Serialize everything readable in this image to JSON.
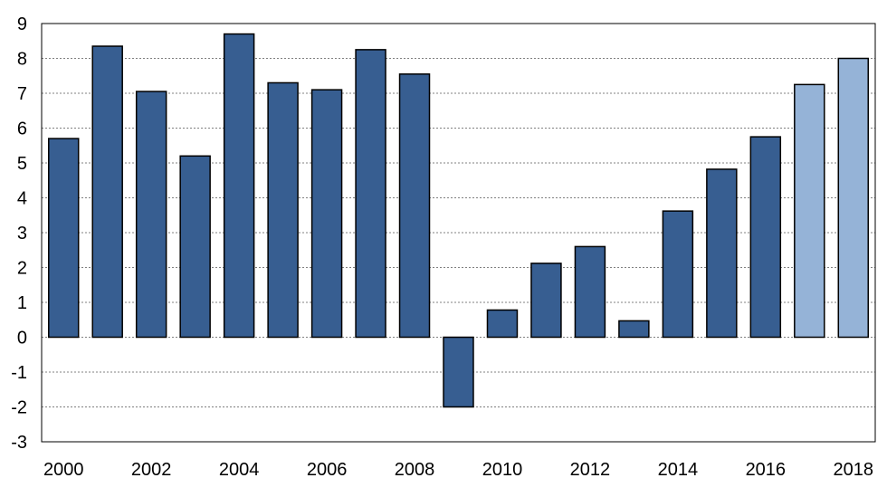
{
  "chart_data": {
    "type": "bar",
    "title": "",
    "xlabel": "",
    "ylabel": "",
    "ylim": [
      -3,
      9
    ],
    "yticks": [
      -3,
      -2,
      -1,
      0,
      1,
      2,
      3,
      4,
      5,
      6,
      7,
      8,
      9
    ],
    "grid": "horizontal dashed",
    "categories": [
      "2000",
      "2001",
      "2002",
      "2003",
      "2004",
      "2005",
      "2006",
      "2007",
      "2008",
      "2009",
      "2010",
      "2011",
      "2012",
      "2013",
      "2014",
      "2015",
      "2016",
      "2017",
      "2018"
    ],
    "xtick_labels": [
      "2000",
      "2002",
      "2004",
      "2006",
      "2008",
      "2010",
      "2012",
      "2014",
      "2016",
      "2018"
    ],
    "values": [
      5.7,
      8.35,
      7.05,
      5.2,
      8.7,
      7.3,
      7.1,
      8.25,
      7.55,
      -2.0,
      0.78,
      2.12,
      2.6,
      0.47,
      3.62,
      4.82,
      5.75,
      7.25,
      8.0
    ],
    "forecast": [
      false,
      false,
      false,
      false,
      false,
      false,
      false,
      false,
      false,
      false,
      false,
      false,
      false,
      false,
      false,
      false,
      false,
      true,
      true
    ],
    "colors": {
      "actual": "#375E91",
      "forecast": "#95B3D7"
    }
  }
}
